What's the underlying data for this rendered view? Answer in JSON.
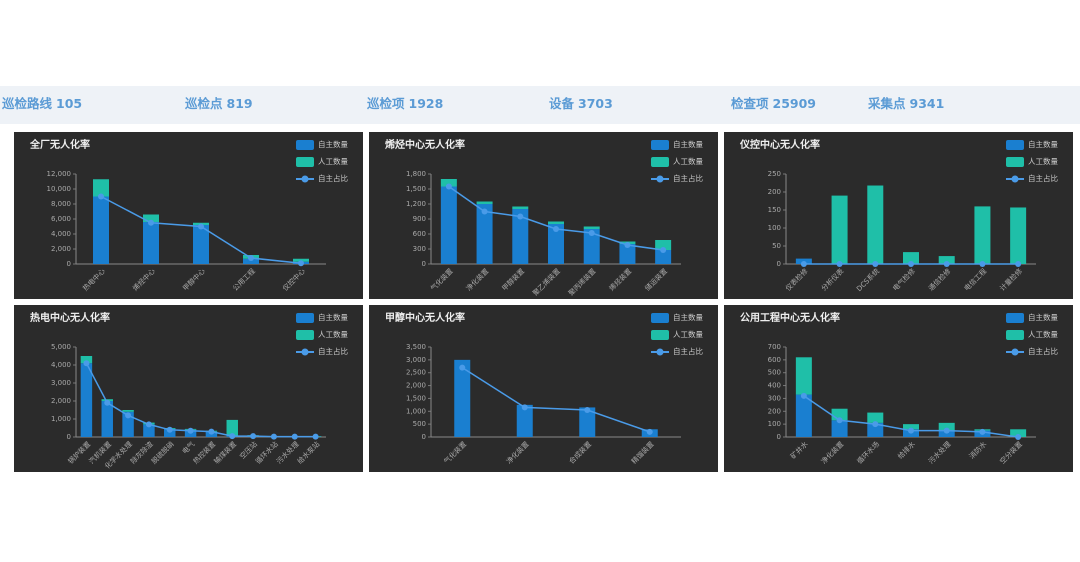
{
  "header": {
    "stats": [
      {
        "label": "巡检路线",
        "value": 105
      },
      {
        "label": "巡检点",
        "value": 819
      },
      {
        "label": "巡检项",
        "value": 1928
      },
      {
        "label": "设备",
        "value": 3703
      },
      {
        "label": "检查项",
        "value": 25909
      },
      {
        "label": "采集点",
        "value": 9341
      }
    ]
  },
  "chart_data": [
    {
      "type": "bar",
      "stacked": true,
      "title": "全厂无人化率",
      "categories": [
        "热电中心",
        "烯烃中心",
        "甲醇中心",
        "公用工程",
        "仪控中心"
      ],
      "series": [
        {
          "name": "自主数量",
          "color": "#1a7fd0",
          "values": [
            9000,
            5600,
            5200,
            700,
            300
          ]
        },
        {
          "name": "人工数量",
          "color": "#1fbfa8",
          "values": [
            2300,
            1000,
            300,
            500,
            400
          ]
        },
        {
          "name": "自主占比",
          "color": "#4a9be8",
          "type": "line",
          "values": [
            9000,
            5500,
            5000,
            800,
            100
          ]
        }
      ],
      "ylim": [
        0,
        12000
      ],
      "yticks": [
        0,
        {
          "value": 2000,
          "label": "2,000"
        },
        {
          "value": 4000,
          "label": "4,000"
        },
        {
          "value": 6000,
          "label": "6,000"
        },
        {
          "value": 8000,
          "label": "8,000"
        },
        {
          "value": 10000,
          "label": "10,000"
        },
        {
          "value": 12000,
          "label": "12,000"
        }
      ]
    },
    {
      "type": "bar",
      "stacked": true,
      "title": "烯烃中心无人化率",
      "categories": [
        "气化装置",
        "净化装置",
        "甲醇装置",
        "聚乙烯装置",
        "聚丙烯装置",
        "烯烃装置",
        "储运装置"
      ],
      "series": [
        {
          "name": "自主数量",
          "color": "#1a7fd0",
          "values": [
            1550,
            1200,
            1100,
            800,
            700,
            400,
            280
          ]
        },
        {
          "name": "人工数量",
          "color": "#1fbfa8",
          "values": [
            150,
            50,
            50,
            50,
            50,
            50,
            200
          ]
        },
        {
          "name": "自主占比",
          "color": "#4a9be8",
          "type": "line",
          "values": [
            1550,
            1050,
            950,
            700,
            620,
            380,
            280
          ]
        }
      ],
      "ylim": [
        0,
        1800
      ],
      "yticks": [
        0,
        300,
        600,
        900,
        {
          "value": 1200,
          "label": "1,200"
        },
        {
          "value": 1500,
          "label": "1,500"
        },
        {
          "value": 1800,
          "label": "1,800"
        }
      ]
    },
    {
      "type": "bar",
      "stacked": true,
      "title": "仪控中心无人化率",
      "categories": [
        "仪表检修",
        "分析仪表",
        "DCS系统",
        "电气检修",
        "通信检修",
        "电信工程",
        "计量检修"
      ],
      "series": [
        {
          "name": "自主数量",
          "color": "#1a7fd0",
          "values": [
            15,
            0,
            0,
            0,
            0,
            0,
            0
          ]
        },
        {
          "name": "人工数量",
          "color": "#1fbfa8",
          "values": [
            0,
            190,
            218,
            33,
            22,
            160,
            157
          ]
        },
        {
          "name": "自主占比",
          "color": "#4a9be8",
          "type": "line",
          "values": [
            0,
            0,
            0,
            0,
            0,
            0,
            0
          ]
        }
      ],
      "ylim": [
        0,
        250
      ],
      "yticks": [
        0,
        50,
        100,
        150,
        200,
        250
      ]
    },
    {
      "type": "bar",
      "stacked": true,
      "title": "热电中心无人化率",
      "categories": [
        "锅炉装置",
        "汽机装置",
        "化学水处理",
        "除灰除渣",
        "脱硫脱硝",
        "电气",
        "热控装置",
        "输煤装置",
        "空压站",
        "循环水站",
        "污水处理",
        "给水泵站"
      ],
      "series": [
        {
          "name": "自主数量",
          "color": "#1a7fd0",
          "values": [
            4100,
            2000,
            1400,
            700,
            450,
            400,
            300,
            50,
            50,
            20,
            20,
            20
          ]
        },
        {
          "name": "人工数量",
          "color": "#1fbfa8",
          "values": [
            400,
            100,
            100,
            100,
            50,
            50,
            50,
            900,
            50,
            30,
            30,
            30
          ]
        },
        {
          "name": "自主占比",
          "color": "#4a9be8",
          "type": "line",
          "values": [
            4100,
            1900,
            1200,
            700,
            400,
            350,
            300,
            50,
            50,
            20,
            20,
            20
          ]
        }
      ],
      "ylim": [
        0,
        5000
      ],
      "yticks": [
        0,
        {
          "value": 1000,
          "label": "1,000"
        },
        {
          "value": 2000,
          "label": "2,000"
        },
        {
          "value": 3000,
          "label": "3,000"
        },
        {
          "value": 4000,
          "label": "4,000"
        },
        {
          "value": 5000,
          "label": "5,000"
        }
      ]
    },
    {
      "type": "bar",
      "stacked": true,
      "title": "甲醇中心无人化率",
      "categories": [
        "气化装置",
        "净化装置",
        "合成装置",
        "精馏装置"
      ],
      "series": [
        {
          "name": "自主数量",
          "color": "#1a7fd0",
          "values": [
            3000,
            1250,
            1150,
            300
          ]
        },
        {
          "name": "人工数量",
          "color": "#1fbfa8",
          "values": [
            0,
            0,
            0,
            0
          ]
        },
        {
          "name": "自主占比",
          "color": "#4a9be8",
          "type": "line",
          "values": [
            2700,
            1150,
            1050,
            200
          ]
        }
      ],
      "ylim": [
        0,
        3500
      ],
      "yticks": [
        0,
        500,
        {
          "value": 1000,
          "label": "1,000"
        },
        {
          "value": 1500,
          "label": "1,500"
        },
        {
          "value": 2000,
          "label": "2,000"
        },
        {
          "value": 2500,
          "label": "2,500"
        },
        {
          "value": 3000,
          "label": "3,000"
        },
        {
          "value": 3500,
          "label": "3,500"
        }
      ]
    },
    {
      "type": "bar",
      "stacked": true,
      "title": "公用工程中心无人化率",
      "categories": [
        "矿井水",
        "净化装置",
        "循环水场",
        "给排水",
        "污水处理",
        "消防水",
        "空分装置"
      ],
      "series": [
        {
          "name": "自主数量",
          "color": "#1a7fd0",
          "values": [
            330,
            130,
            110,
            60,
            50,
            50,
            0
          ]
        },
        {
          "name": "人工数量",
          "color": "#1fbfa8",
          "values": [
            290,
            90,
            80,
            40,
            60,
            10,
            60
          ]
        },
        {
          "name": "自主占比",
          "color": "#4a9be8",
          "type": "line",
          "values": [
            320,
            130,
            100,
            50,
            50,
            40,
            0
          ]
        }
      ],
      "ylim": [
        0,
        700
      ],
      "yticks": [
        0,
        100,
        200,
        300,
        400,
        500,
        600,
        700
      ]
    }
  ]
}
